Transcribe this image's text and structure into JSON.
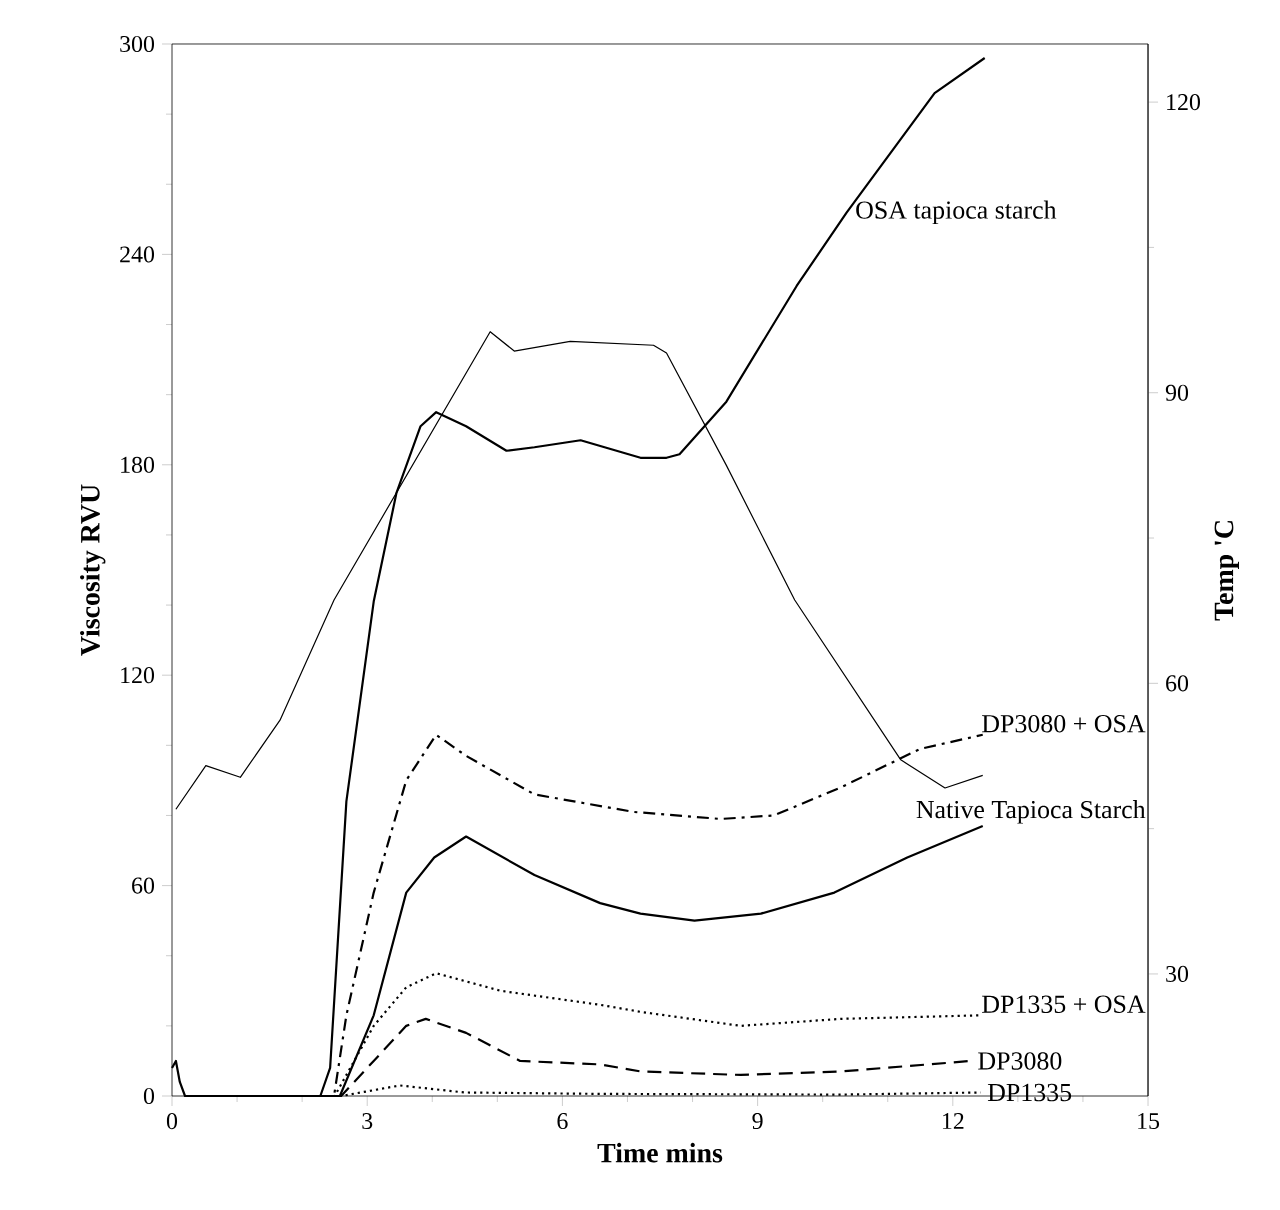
{
  "chart_data": {
    "type": "line",
    "xlabel": "Time mins",
    "ylabel": "Viscosity RVU",
    "y2label": "Temp 'C",
    "xlim": [
      0,
      15
    ],
    "xticks": [
      0,
      3,
      6,
      9,
      12,
      15
    ],
    "ylim": [
      0,
      300
    ],
    "yticks": [
      0,
      60,
      120,
      180,
      240,
      300
    ],
    "y2lim": [
      17.4,
      126
    ],
    "y2ticks": [
      30,
      60,
      90,
      120
    ],
    "grid": false,
    "legend": false,
    "marker": "none",
    "series": [
      {
        "name": "OSA tapioca starch",
        "color": "#000000",
        "line_style": "solid",
        "x": [
          0,
          0.06,
          0.12,
          0.2,
          1.0,
          2.0,
          2.28,
          2.43,
          2.68,
          3.1,
          3.45,
          3.82,
          4.06,
          4.52,
          5.14,
          5.57,
          6.28,
          7.2,
          7.6,
          7.8,
          8.52,
          9.6,
          10.37,
          11.72,
          12.49
        ],
        "values": [
          8,
          10,
          4,
          0,
          0,
          0,
          0,
          8,
          84,
          141,
          172,
          191,
          195,
          191,
          184,
          185,
          187,
          182,
          182,
          183,
          198,
          231,
          252,
          286,
          296
        ]
      },
      {
        "name": "DP3080 + OSA",
        "color": "#000000",
        "line_style": "dashdot",
        "x": [
          0.2,
          2.49,
          2.68,
          3.1,
          3.6,
          4.06,
          4.52,
          5.57,
          7.1,
          8.43,
          9.25,
          10.28,
          11.5,
          12.46
        ],
        "values": [
          0,
          0,
          23,
          58,
          90,
          103,
          97,
          86,
          81,
          79,
          80,
          88,
          99,
          103
        ]
      },
      {
        "name": "Native Tapioca Starch",
        "color": "#000000",
        "line_style": "solid",
        "x": [
          0.2,
          2.58,
          3.1,
          3.6,
          4.03,
          4.52,
          5.57,
          6.58,
          7.2,
          8.03,
          9.05,
          10.18,
          11.3,
          12.46
        ],
        "values": [
          0,
          0,
          23,
          58,
          68,
          74,
          63,
          55,
          52,
          50,
          52,
          58,
          68,
          77
        ]
      },
      {
        "name": "DP1335 + OSA",
        "color": "#000000",
        "line_style": "dotted",
        "x": [
          0.2,
          2.5,
          3.1,
          3.6,
          4.06,
          5.05,
          6.58,
          7.2,
          8.74,
          10.28,
          12.43
        ],
        "values": [
          0,
          0,
          20,
          31,
          35,
          30,
          26,
          24,
          20,
          22,
          23
        ]
      },
      {
        "name": "DP3080",
        "color": "#000000",
        "line_style": "dashed",
        "x": [
          0.2,
          2.6,
          3.1,
          3.6,
          3.9,
          4.52,
          5.35,
          6.58,
          7.2,
          8.74,
          10.28,
          12.28
        ],
        "values": [
          0,
          0,
          10,
          20,
          22,
          18,
          10,
          9,
          7,
          6,
          7,
          10
        ]
      },
      {
        "name": "DP1335",
        "color": "#000000",
        "line_style": "dotted",
        "x": [
          0.2,
          2.6,
          3.2,
          3.5,
          4.5,
          6.6,
          10.28,
          12.43
        ],
        "values": [
          0,
          0,
          2,
          3,
          1,
          0.6,
          0.4,
          1
        ]
      },
      {
        "color": "#000000",
        "line_style": "solid",
        "axis": "y2",
        "x": [
          0.06,
          0.52,
          1.05,
          1.66,
          2.49,
          4.89,
          5.26,
          6.12,
          7.4,
          7.6,
          8.52,
          9.57,
          11.2,
          11.88,
          12.46
        ],
        "values": [
          47,
          51.5,
          50.3,
          56.2,
          68.6,
          96.3,
          94.3,
          95.3,
          94.9,
          94.1,
          82.5,
          68.6,
          52.1,
          49.2,
          50.5
        ]
      }
    ]
  }
}
